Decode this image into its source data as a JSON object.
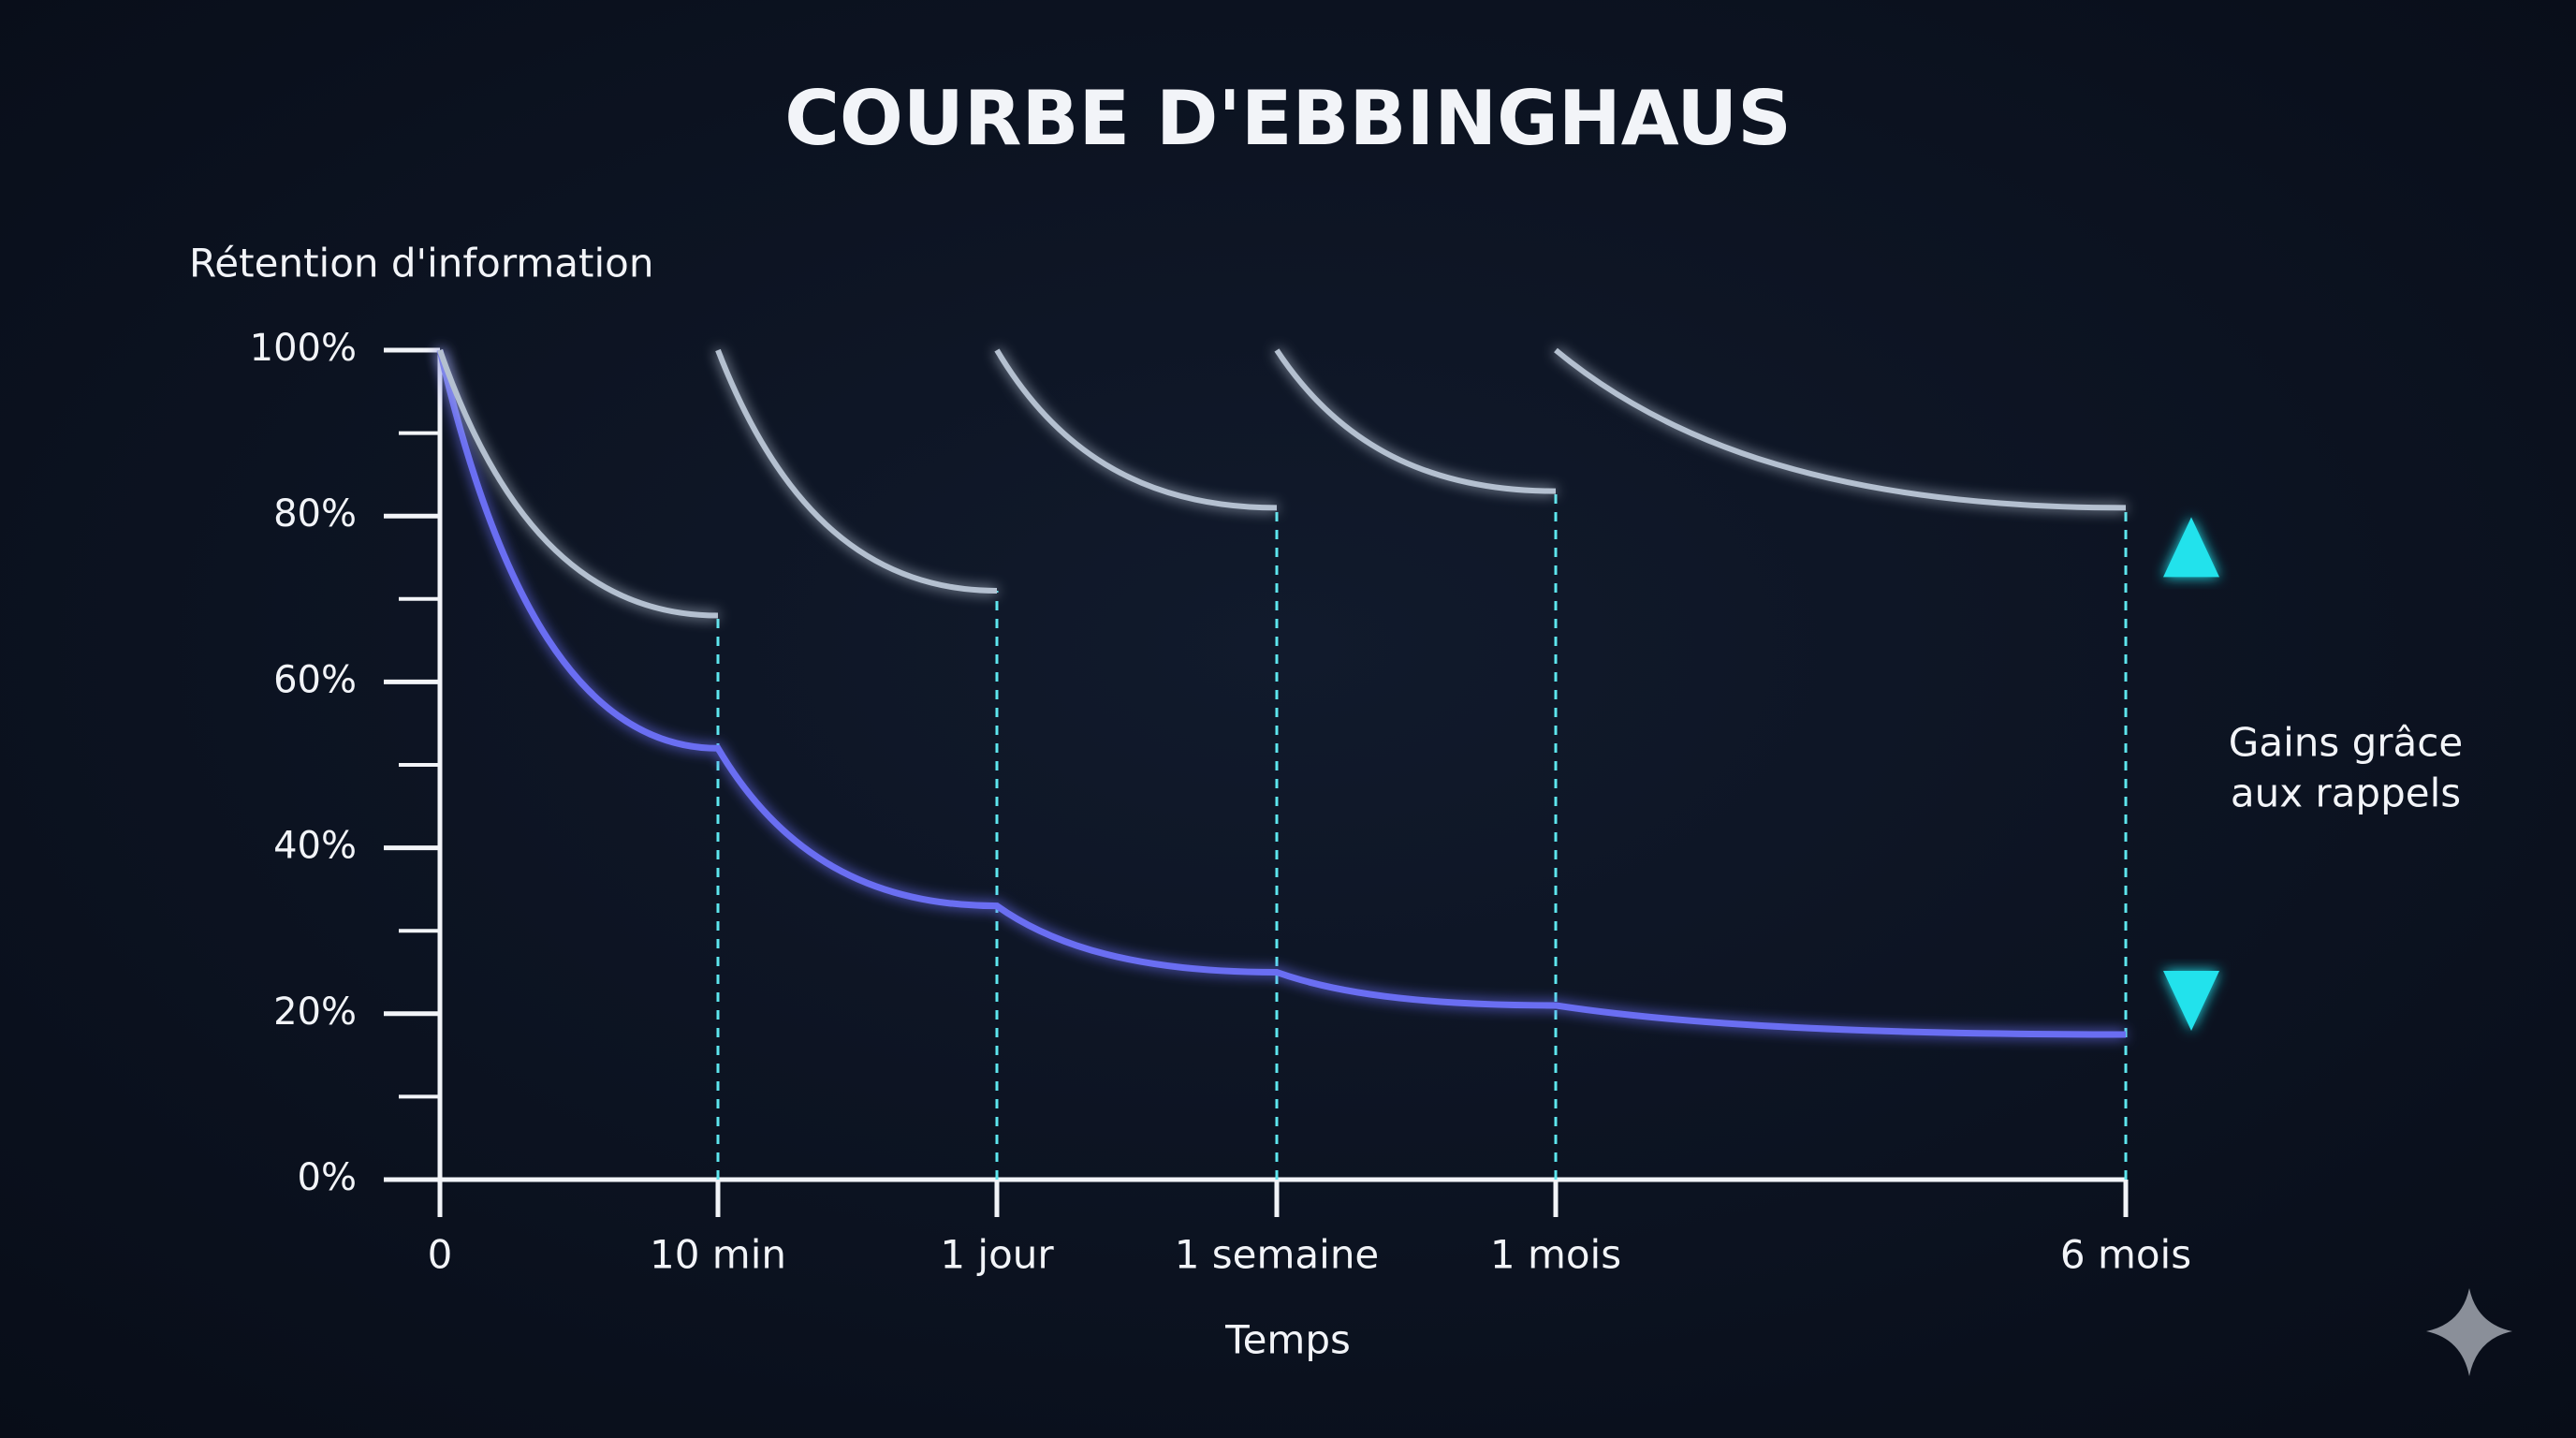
{
  "chart_data": {
    "type": "line",
    "title": "COURBE D'EBBINGHAUS",
    "y_label": "Rétention d'information",
    "x_label": "Temps",
    "categories": [
      "0",
      "10 min",
      "1 jour",
      "1 semaine",
      "1 mois",
      "6 mois"
    ],
    "ylim": [
      0,
      100
    ],
    "yticks": [
      {
        "value": 0,
        "label": "0%"
      },
      {
        "value": 20,
        "label": "20%"
      },
      {
        "value": 40,
        "label": "40%"
      },
      {
        "value": 60,
        "label": "60%"
      },
      {
        "value": 80,
        "label": "80%"
      },
      {
        "value": 100,
        "label": "100%"
      }
    ],
    "yminorticks": [
      10,
      30,
      50,
      70,
      90
    ],
    "series": [
      {
        "color": "#6b6ef2",
        "values": [
          100,
          52,
          33,
          25,
          21,
          17.5
        ]
      },
      {
        "color": "#b4c0d0",
        "spike_color": "#5de6ee",
        "values": [
          100,
          68,
          71,
          81,
          83,
          81
        ],
        "peaks": [
          100,
          100,
          100,
          100,
          100,
          null
        ]
      }
    ],
    "annotation": {
      "lines": [
        "Gains grâce",
        "aux rappels"
      ],
      "color": "#22e2ec"
    }
  }
}
